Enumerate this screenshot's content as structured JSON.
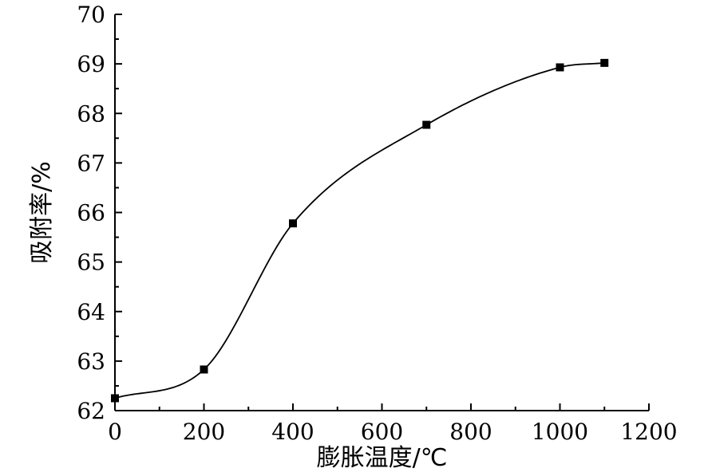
{
  "chart_data": {
    "type": "line",
    "title": "",
    "xlabel": "膨胀温度/℃",
    "ylabel": "吸附率/%",
    "xlim": [
      0,
      1200
    ],
    "ylim": [
      62,
      70
    ],
    "x_ticks": [
      "0",
      "200",
      "400",
      "600",
      "800",
      "1000",
      "1200"
    ],
    "y_ticks": [
      "62",
      "63",
      "64",
      "65",
      "66",
      "67",
      "68",
      "69",
      "70"
    ],
    "grid": false,
    "legend": "none",
    "series": [
      {
        "x": [
          0,
          200,
          400,
          700,
          1000,
          1100
        ],
        "y": [
          62.25,
          62.83,
          65.78,
          67.77,
          68.93,
          69.02
        ],
        "marker": "square",
        "line": "smooth",
        "color": "#000000"
      }
    ]
  }
}
